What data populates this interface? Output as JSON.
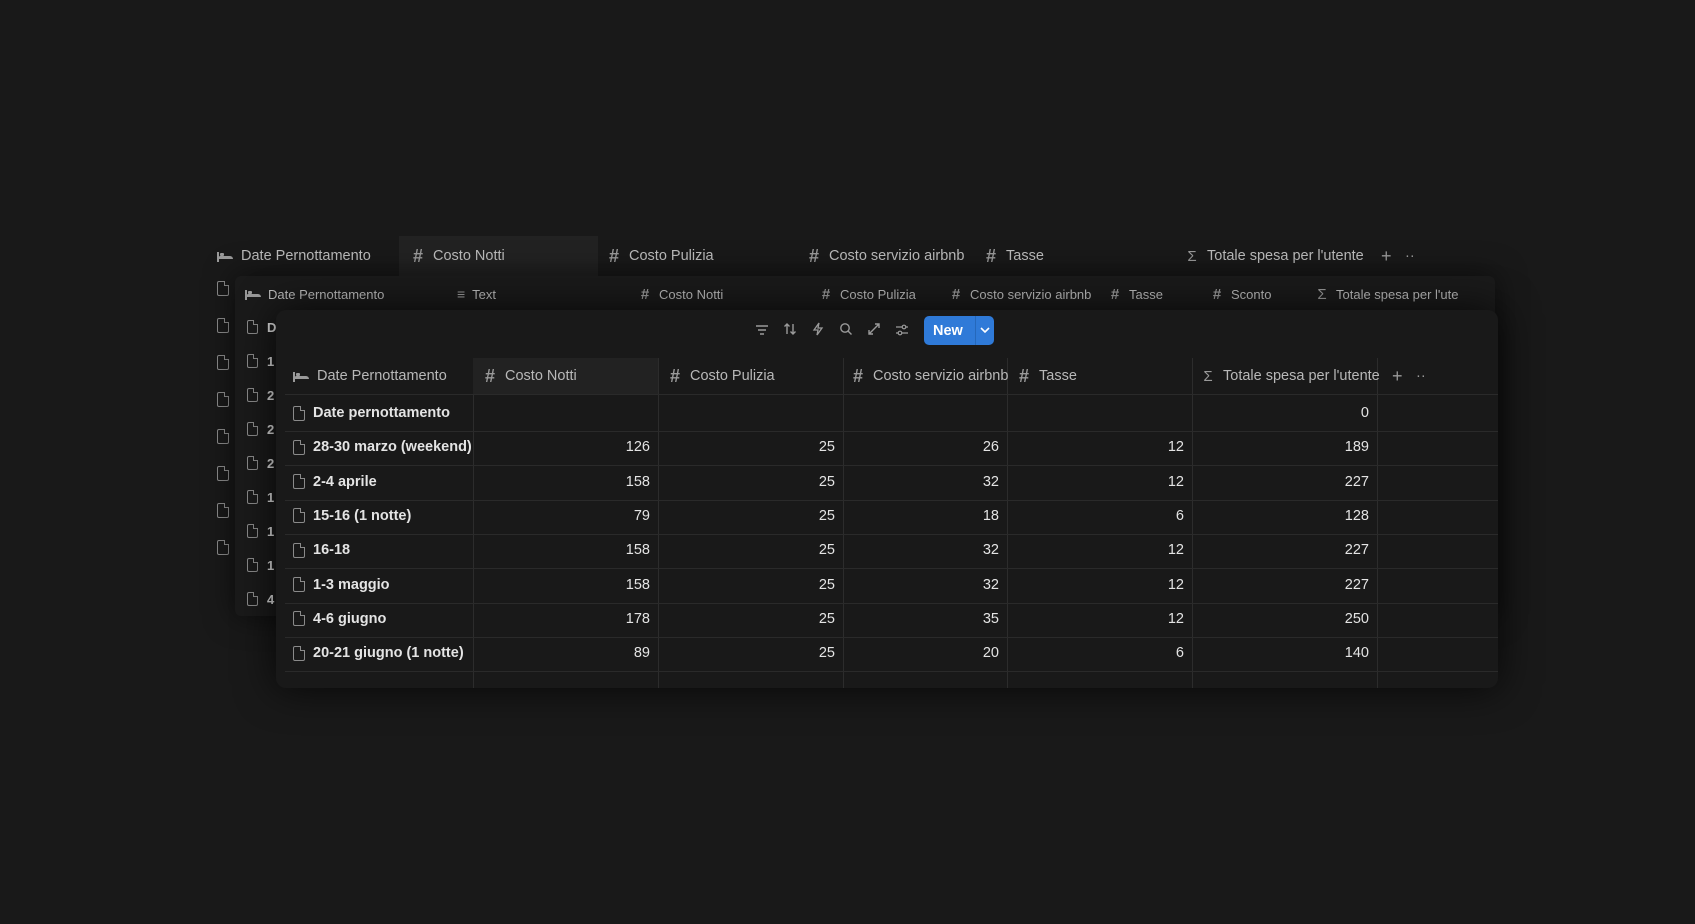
{
  "back_header": {
    "columns": [
      "Date Pernottamento",
      "Costo Notti",
      "Costo Pulizia",
      "Costo servizio airbnb",
      "Tasse",
      "Totale spesa per l'utente"
    ],
    "add_label": "+",
    "more_label": "··"
  },
  "middle_header": {
    "columns": [
      "Date Pernottamento",
      "Text",
      "Costo Notti",
      "Costo Pulizia",
      "Costo servizio airbnb",
      "Tasse",
      "Sconto",
      "Totale spesa per l'ute"
    ],
    "row_prefixes": [
      "D",
      "1",
      "2",
      "2",
      "2",
      "1",
      "1",
      "1",
      "4"
    ]
  },
  "toolbar": {
    "new_label": "New",
    "icons": [
      "filter-icon",
      "sort-icon",
      "automation-icon",
      "search-icon",
      "expand-icon",
      "settings-icon"
    ]
  },
  "table": {
    "columns": [
      "Date Pernottamento",
      "Costo Notti",
      "Costo Pulizia",
      "Costo servizio airbnb",
      "Tasse",
      "Totale spesa per l'utente"
    ],
    "add_label": "+",
    "more_label": "··",
    "rows": [
      {
        "name": "Date pernottamento",
        "notti": "",
        "pulizia": "",
        "servizio": "",
        "tasse": "",
        "totale": "0"
      },
      {
        "name": "28-30 marzo (weekend)",
        "notti": "126",
        "pulizia": "25",
        "servizio": "26",
        "tasse": "12",
        "totale": "189"
      },
      {
        "name": "2-4 aprile",
        "notti": "158",
        "pulizia": "25",
        "servizio": "32",
        "tasse": "12",
        "totale": "227"
      },
      {
        "name": "15-16 (1 notte)",
        "notti": "79",
        "pulizia": "25",
        "servizio": "18",
        "tasse": "6",
        "totale": "128"
      },
      {
        "name": "16-18",
        "notti": "158",
        "pulizia": "25",
        "servizio": "32",
        "tasse": "12",
        "totale": "227"
      },
      {
        "name": "1-3 maggio",
        "notti": "158",
        "pulizia": "25",
        "servizio": "32",
        "tasse": "12",
        "totale": "227"
      },
      {
        "name": "4-6 giugno",
        "notti": "178",
        "pulizia": "25",
        "servizio": "35",
        "tasse": "12",
        "totale": "250"
      },
      {
        "name": "20-21 giugno (1 notte)",
        "notti": "89",
        "pulizia": "25",
        "servizio": "20",
        "tasse": "6",
        "totale": "140"
      }
    ]
  },
  "colors": {
    "background": "#191919",
    "accent": "#2f7ad8"
  }
}
